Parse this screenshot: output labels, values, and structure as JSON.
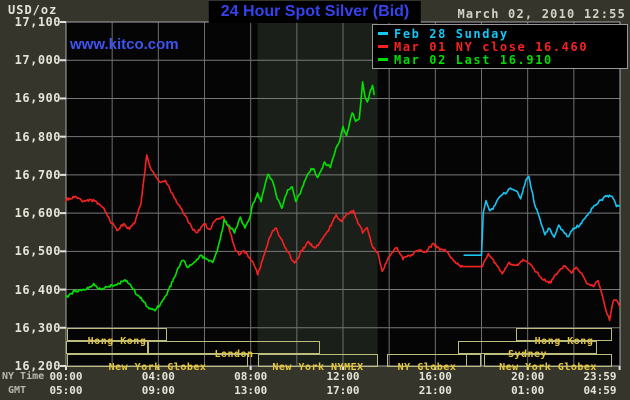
{
  "header": {
    "unit_label": "USD/oz",
    "title": "24 Hour Spot Silver (Bid)",
    "datetime": "March 02, 2010 12:55",
    "watermark": "www.kitco.com"
  },
  "legend": {
    "items": [
      {
        "label": "Feb 28 Sunday",
        "color": "#17c4f4"
      },
      {
        "label": "Mar 01 NY close 16.460",
        "color": "#f52222"
      },
      {
        "label": "Mar 02 Last 16.910",
        "color": "#00dd00"
      }
    ]
  },
  "axes": {
    "row_label_ny": "NY Time",
    "row_label_gmt": "GMT",
    "y_labels": [
      {
        "text": "17,100",
        "v": 17.1
      },
      {
        "text": "17,000",
        "v": 17.0
      },
      {
        "text": "16,900",
        "v": 16.9
      },
      {
        "text": "16,800",
        "v": 16.8
      },
      {
        "text": "16,700",
        "v": 16.7
      },
      {
        "text": "16,600",
        "v": 16.6
      },
      {
        "text": "16,500",
        "v": 16.5
      },
      {
        "text": "16,400",
        "v": 16.4
      },
      {
        "text": "16,300",
        "v": 16.3
      },
      {
        "text": "16,200",
        "v": 16.2
      }
    ],
    "x_ticks": [
      {
        "ny": "00:00",
        "gmt": "05:00",
        "h": 0
      },
      {
        "ny": "04:00",
        "gmt": "09:00",
        "h": 4
      },
      {
        "ny": "08:00",
        "gmt": "13:00",
        "h": 8
      },
      {
        "ny": "12:00",
        "gmt": "17:00",
        "h": 12
      },
      {
        "ny": "16:00",
        "gmt": "21:00",
        "h": 16
      },
      {
        "ny": "20:00",
        "gmt": "01:00",
        "h": 20
      },
      {
        "ny": "23:59",
        "gmt": "04:59",
        "h": 23.983
      }
    ]
  },
  "sessions": [
    {
      "row": 1,
      "start": 0.05,
      "end": 4.4,
      "label": "Hong Kong"
    },
    {
      "row": 1,
      "start": 19.5,
      "end": 23.65,
      "label": "Hong Kong"
    },
    {
      "row": 2,
      "start": 0.0,
      "end": 3.55,
      "label": ""
    },
    {
      "row": 2,
      "start": 3.55,
      "end": 11.0,
      "label": "London"
    },
    {
      "row": 2,
      "start": 17.0,
      "end": 23.0,
      "label": "Sydney"
    },
    {
      "row": 3,
      "start": 0.05,
      "end": 7.9,
      "label": "New York Globex"
    },
    {
      "row": 3,
      "start": 8.3,
      "end": 13.5,
      "label": "New York NYMEX"
    },
    {
      "row": 3,
      "start": 13.9,
      "end": 17.35,
      "label": "NY Globex"
    },
    {
      "row": 3,
      "start": 17.35,
      "end": 18.0,
      "label": ""
    },
    {
      "row": 3,
      "start": 18.1,
      "end": 23.65,
      "label": "New York Globex"
    }
  ],
  "chart_data": {
    "type": "line",
    "title": "24 Hour Spot Silver (Bid)",
    "ylabel": "USD/oz",
    "ylim": [
      16.2,
      17.1
    ],
    "y_tick_step": 0.1,
    "x_unit": "hours NY time",
    "xlim": [
      0,
      24
    ],
    "grid": true,
    "legend_position": "top-right",
    "highlight_band_hours": [
      8.3,
      13.5
    ],
    "series": [
      {
        "name": "Feb 28 Sunday",
        "color": "#17c4f4",
        "flat": [
          [
            17.25,
            18.0
          ]
        ],
        "points": [
          [
            17.25,
            16.49
          ],
          [
            18.0,
            16.49
          ],
          [
            18.08,
            16.6
          ],
          [
            18.2,
            16.636
          ],
          [
            18.35,
            16.606
          ],
          [
            18.5,
            16.612
          ],
          [
            18.8,
            16.646
          ],
          [
            19.05,
            16.654
          ],
          [
            19.3,
            16.666
          ],
          [
            19.5,
            16.658
          ],
          [
            19.7,
            16.64
          ],
          [
            19.95,
            16.69
          ],
          [
            20.05,
            16.695
          ],
          [
            20.3,
            16.625
          ],
          [
            20.5,
            16.59
          ],
          [
            20.75,
            16.545
          ],
          [
            20.95,
            16.56
          ],
          [
            21.15,
            16.536
          ],
          [
            21.35,
            16.57
          ],
          [
            21.55,
            16.55
          ],
          [
            21.75,
            16.54
          ],
          [
            22.0,
            16.56
          ],
          [
            22.2,
            16.566
          ],
          [
            22.6,
            16.596
          ],
          [
            22.9,
            16.62
          ],
          [
            23.2,
            16.636
          ],
          [
            23.5,
            16.646
          ],
          [
            23.7,
            16.64
          ],
          [
            23.85,
            16.616
          ],
          [
            23.98,
            16.62
          ]
        ]
      },
      {
        "name": "Mar 01 NY close 16.460",
        "color": "#f52222",
        "ny_close": 16.46,
        "flat": [
          [
            17.2,
            18.0
          ]
        ],
        "points": [
          [
            0.0,
            16.635
          ],
          [
            0.4,
            16.642
          ],
          [
            0.75,
            16.63
          ],
          [
            1.1,
            16.636
          ],
          [
            1.5,
            16.62
          ],
          [
            1.75,
            16.6
          ],
          [
            1.95,
            16.575
          ],
          [
            2.25,
            16.555
          ],
          [
            2.5,
            16.572
          ],
          [
            2.75,
            16.556
          ],
          [
            3.0,
            16.58
          ],
          [
            3.25,
            16.625
          ],
          [
            3.5,
            16.75
          ],
          [
            3.65,
            16.718
          ],
          [
            3.85,
            16.7
          ],
          [
            4.05,
            16.68
          ],
          [
            4.3,
            16.686
          ],
          [
            4.55,
            16.658
          ],
          [
            4.75,
            16.635
          ],
          [
            5.0,
            16.61
          ],
          [
            5.25,
            16.584
          ],
          [
            5.5,
            16.556
          ],
          [
            5.7,
            16.55
          ],
          [
            6.0,
            16.572
          ],
          [
            6.2,
            16.556
          ],
          [
            6.5,
            16.585
          ],
          [
            6.8,
            16.59
          ],
          [
            7.05,
            16.564
          ],
          [
            7.3,
            16.51
          ],
          [
            7.5,
            16.49
          ],
          [
            7.7,
            16.502
          ],
          [
            7.9,
            16.486
          ],
          [
            8.1,
            16.474
          ],
          [
            8.3,
            16.44
          ],
          [
            8.6,
            16.492
          ],
          [
            8.9,
            16.55
          ],
          [
            9.1,
            16.56
          ],
          [
            9.4,
            16.52
          ],
          [
            9.7,
            16.49
          ],
          [
            9.9,
            16.466
          ],
          [
            10.2,
            16.5
          ],
          [
            10.5,
            16.525
          ],
          [
            10.8,
            16.508
          ],
          [
            11.1,
            16.53
          ],
          [
            11.4,
            16.558
          ],
          [
            11.7,
            16.596
          ],
          [
            11.9,
            16.576
          ],
          [
            12.2,
            16.6
          ],
          [
            12.45,
            16.604
          ],
          [
            12.65,
            16.574
          ],
          [
            12.85,
            16.55
          ],
          [
            13.05,
            16.562
          ],
          [
            13.3,
            16.51
          ],
          [
            13.5,
            16.496
          ],
          [
            13.7,
            16.445
          ],
          [
            14.0,
            16.486
          ],
          [
            14.3,
            16.51
          ],
          [
            14.6,
            16.482
          ],
          [
            14.95,
            16.492
          ],
          [
            15.3,
            16.505
          ],
          [
            15.6,
            16.5
          ],
          [
            15.9,
            16.52
          ],
          [
            16.2,
            16.506
          ],
          [
            16.5,
            16.5
          ],
          [
            16.8,
            16.476
          ],
          [
            17.05,
            16.462
          ],
          [
            17.2,
            16.46
          ],
          [
            18.0,
            16.46
          ],
          [
            18.3,
            16.492
          ],
          [
            18.6,
            16.47
          ],
          [
            18.9,
            16.442
          ],
          [
            19.2,
            16.47
          ],
          [
            19.5,
            16.464
          ],
          [
            19.8,
            16.476
          ],
          [
            20.1,
            16.468
          ],
          [
            20.4,
            16.444
          ],
          [
            20.7,
            16.425
          ],
          [
            21.0,
            16.418
          ],
          [
            21.3,
            16.446
          ],
          [
            21.6,
            16.462
          ],
          [
            21.9,
            16.444
          ],
          [
            22.1,
            16.458
          ],
          [
            22.35,
            16.44
          ],
          [
            22.6,
            16.414
          ],
          [
            22.85,
            16.41
          ],
          [
            23.05,
            16.422
          ],
          [
            23.25,
            16.38
          ],
          [
            23.45,
            16.335
          ],
          [
            23.55,
            16.32
          ],
          [
            23.7,
            16.368
          ],
          [
            23.85,
            16.372
          ],
          [
            23.98,
            16.356
          ]
        ]
      },
      {
        "name": "Mar 02 Last 16.910",
        "color": "#00e400",
        "last": 16.91,
        "flat": [],
        "points": [
          [
            0.0,
            16.38
          ],
          [
            0.35,
            16.395
          ],
          [
            0.8,
            16.4
          ],
          [
            1.2,
            16.412
          ],
          [
            1.5,
            16.4
          ],
          [
            1.9,
            16.41
          ],
          [
            2.3,
            16.415
          ],
          [
            2.55,
            16.425
          ],
          [
            2.8,
            16.41
          ],
          [
            3.05,
            16.39
          ],
          [
            3.3,
            16.375
          ],
          [
            3.6,
            16.35
          ],
          [
            3.85,
            16.345
          ],
          [
            4.2,
            16.37
          ],
          [
            4.5,
            16.405
          ],
          [
            4.75,
            16.44
          ],
          [
            5.05,
            16.48
          ],
          [
            5.25,
            16.46
          ],
          [
            5.5,
            16.468
          ],
          [
            5.85,
            16.49
          ],
          [
            6.1,
            16.478
          ],
          [
            6.35,
            16.47
          ],
          [
            6.6,
            16.51
          ],
          [
            6.85,
            16.58
          ],
          [
            7.1,
            16.565
          ],
          [
            7.3,
            16.55
          ],
          [
            7.55,
            16.59
          ],
          [
            7.75,
            16.56
          ],
          [
            7.95,
            16.585
          ],
          [
            8.1,
            16.625
          ],
          [
            8.3,
            16.65
          ],
          [
            8.45,
            16.63
          ],
          [
            8.6,
            16.672
          ],
          [
            8.75,
            16.7
          ],
          [
            8.95,
            16.685
          ],
          [
            9.15,
            16.64
          ],
          [
            9.35,
            16.612
          ],
          [
            9.6,
            16.66
          ],
          [
            9.8,
            16.668
          ],
          [
            9.95,
            16.63
          ],
          [
            10.15,
            16.652
          ],
          [
            10.45,
            16.7
          ],
          [
            10.7,
            16.72
          ],
          [
            10.9,
            16.692
          ],
          [
            11.2,
            16.73
          ],
          [
            11.45,
            16.72
          ],
          [
            11.65,
            16.76
          ],
          [
            11.85,
            16.79
          ],
          [
            12.0,
            16.825
          ],
          [
            12.15,
            16.8
          ],
          [
            12.4,
            16.865
          ],
          [
            12.55,
            16.842
          ],
          [
            12.7,
            16.845
          ],
          [
            12.85,
            16.94
          ],
          [
            12.95,
            16.905
          ],
          [
            13.05,
            16.89
          ],
          [
            13.15,
            16.912
          ],
          [
            13.28,
            16.935
          ],
          [
            13.35,
            16.91
          ]
        ]
      }
    ]
  },
  "colors": {
    "bg_outer": "#35352b",
    "bg_plot": "#050505",
    "band": "#1a1f1a",
    "grid": "#787878",
    "border": "#a8a8a8",
    "tick": "#e0e0e0",
    "title": "#3542ee",
    "watermark": "#4053f2",
    "session_border": "#bdbd7e",
    "session_text": "#e8c83c"
  }
}
